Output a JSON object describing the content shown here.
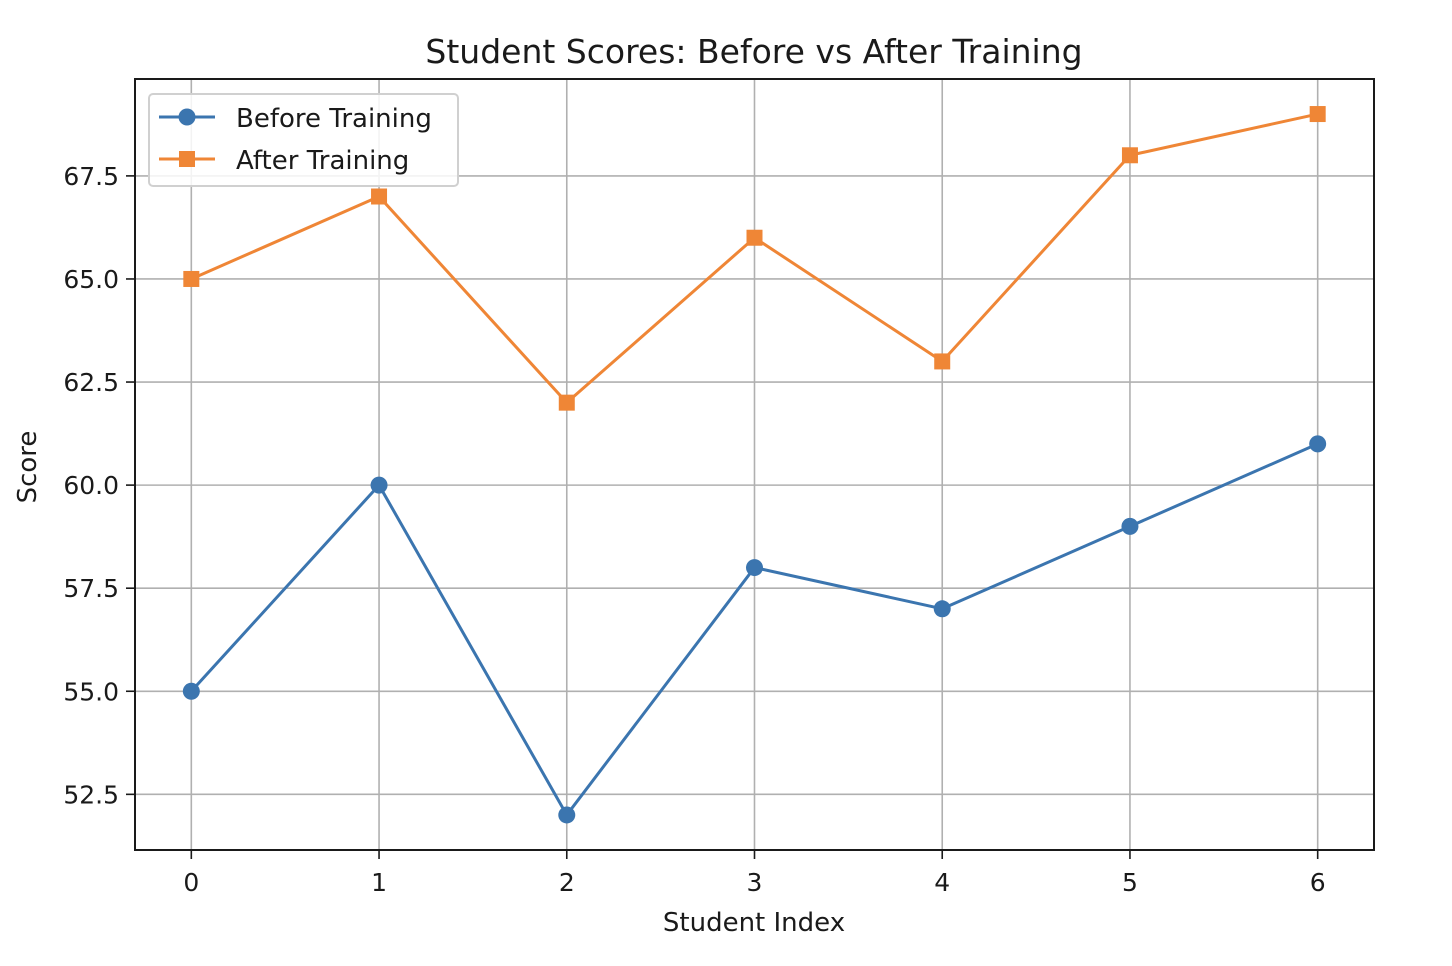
{
  "chart_data": {
    "type": "line",
    "title": "Student Scores: Before vs After Training",
    "xlabel": "Student Index",
    "ylabel": "Score",
    "x": [
      0,
      1,
      2,
      3,
      4,
      5,
      6
    ],
    "xticks": [
      "0",
      "1",
      "2",
      "3",
      "4",
      "5",
      "6"
    ],
    "xlim": [
      -0.3,
      6.3
    ],
    "ylim": [
      51.15,
      69.85
    ],
    "yticks": [
      "52.5",
      "55.0",
      "57.5",
      "60.0",
      "62.5",
      "65.0",
      "67.5"
    ],
    "grid": true,
    "legend_position": "top-left",
    "series": [
      {
        "name": "Before Training",
        "values": [
          55,
          60,
          52,
          58,
          57,
          59,
          61
        ],
        "marker": "circle",
        "color": "#3b75af"
      },
      {
        "name": "After Training",
        "values": [
          65,
          67,
          62,
          66,
          63,
          68,
          69
        ],
        "marker": "square",
        "color": "#ef8636"
      }
    ]
  }
}
